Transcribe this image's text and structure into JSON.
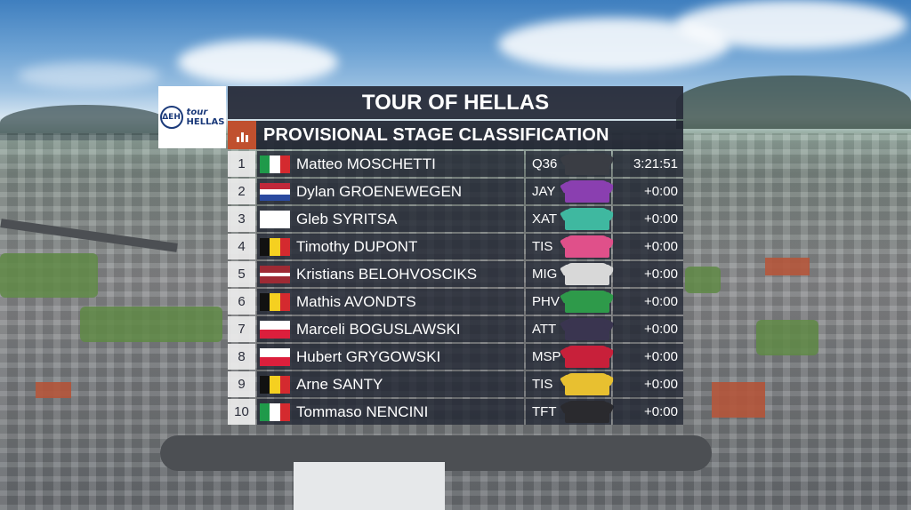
{
  "header": {
    "title": "TOUR OF HELLAS",
    "subtitle": "PROVISIONAL STAGE CLASSIFICATION"
  },
  "logo": {
    "mark": "ΔΕΗ",
    "text": "HELLAS",
    "script": "tour"
  },
  "colors": {
    "title_bg": "#282c3a",
    "accent": "#c0502e",
    "row_bg": "#1e2230"
  },
  "icons": {
    "standings": "bar-chart-icon"
  },
  "classification": [
    {
      "position": "1",
      "rider": "Matteo MOSCHETTI",
      "flag": "italy",
      "team": "Q36",
      "time": "3:21:51",
      "jersey": "#3a3d44"
    },
    {
      "position": "2",
      "rider": "Dylan GROENEWEGEN",
      "flag": "netherlands",
      "team": "JAY",
      "time": "+0:00",
      "jersey": "#8a3fb0"
    },
    {
      "position": "3",
      "rider": "Gleb SYRITSA",
      "flag": "white",
      "team": "XAT",
      "time": "+0:00",
      "jersey": "#3fb8a0"
    },
    {
      "position": "4",
      "rider": "Timothy DUPONT",
      "flag": "belgium",
      "team": "TIS",
      "time": "+0:00",
      "jersey": "#e0508a"
    },
    {
      "position": "5",
      "rider": "Kristians BELOHVOSCIKS",
      "flag": "latvia",
      "team": "MIG",
      "time": "+0:00",
      "jersey": "#d8d8d8"
    },
    {
      "position": "6",
      "rider": "Mathis AVONDTS",
      "flag": "belgium",
      "team": "PHV",
      "time": "+0:00",
      "jersey": "#2e9a4a"
    },
    {
      "position": "7",
      "rider": "Marceli BOGUSLAWSKI",
      "flag": "poland",
      "team": "ATT",
      "time": "+0:00",
      "jersey": "#3a3550"
    },
    {
      "position": "8",
      "rider": "Hubert GRYGOWSKI",
      "flag": "poland",
      "team": "MSP",
      "time": "+0:00",
      "jersey": "#c8203a"
    },
    {
      "position": "9",
      "rider": "Arne SANTY",
      "flag": "belgium",
      "team": "TIS",
      "time": "+0:00",
      "jersey": "#e8c030"
    },
    {
      "position": "10",
      "rider": "Tommaso NENCINI",
      "flag": "italy",
      "team": "TFT",
      "time": "+0:00",
      "jersey": "#2a2a2e"
    }
  ]
}
